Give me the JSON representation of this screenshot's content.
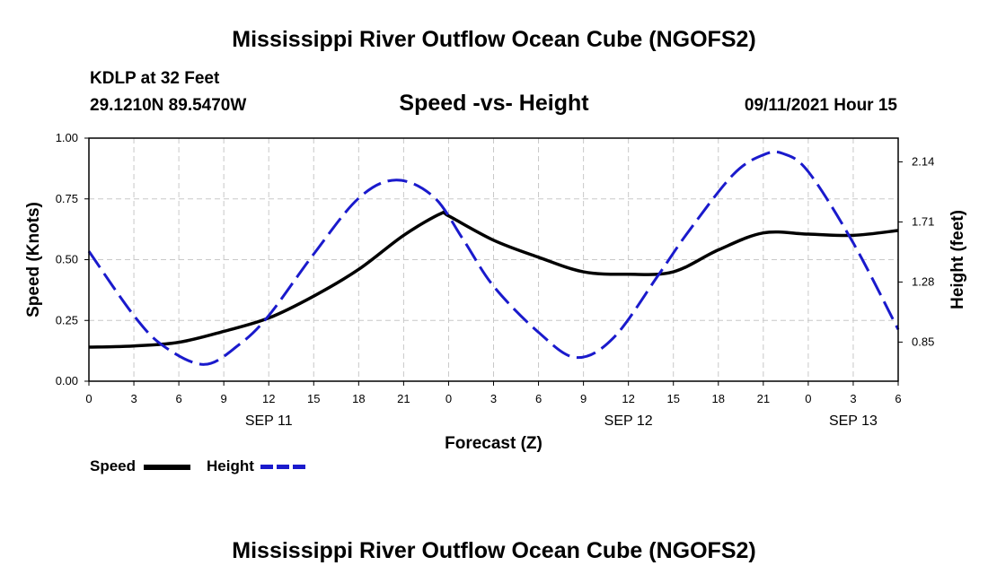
{
  "page": {
    "title_top": "Mississippi River Outflow Ocean Cube (NGOFS2)",
    "title_bottom": "Mississippi River Outflow Ocean Cube (NGOFS2)",
    "station": "KDLP at 32 Feet",
    "coords": "29.1210N  89.5470W",
    "subtitle": "Speed -vs- Height",
    "datetime": "09/11/2021 Hour 15"
  },
  "legend": {
    "speed_label": "Speed",
    "height_label": "Height"
  },
  "colors": {
    "speed": "#000000",
    "height": "#1a1acc",
    "grid": "#c8c8c8"
  },
  "chart_data": {
    "type": "line",
    "title": "Speed -vs- Height",
    "xlabel": "Forecast (Z)",
    "ylabel": "Speed (Knots)",
    "y2label": "Height (feet)",
    "xlim": [
      0,
      54
    ],
    "ylim": [
      0,
      1
    ],
    "y2lim": [
      0.57,
      2.31
    ],
    "grid": true,
    "legend_position": "bottom-left",
    "x_ticks": [
      {
        "hour": 0,
        "label": "0"
      },
      {
        "hour": 3,
        "label": "3"
      },
      {
        "hour": 6,
        "label": "6"
      },
      {
        "hour": 9,
        "label": "9"
      },
      {
        "hour": 12,
        "label": "12"
      },
      {
        "hour": 15,
        "label": "15"
      },
      {
        "hour": 18,
        "label": "18"
      },
      {
        "hour": 21,
        "label": "21"
      },
      {
        "hour": 24,
        "label": "0"
      },
      {
        "hour": 27,
        "label": "3"
      },
      {
        "hour": 30,
        "label": "6"
      },
      {
        "hour": 33,
        "label": "9"
      },
      {
        "hour": 36,
        "label": "12"
      },
      {
        "hour": 39,
        "label": "15"
      },
      {
        "hour": 42,
        "label": "18"
      },
      {
        "hour": 45,
        "label": "21"
      },
      {
        "hour": 48,
        "label": "0"
      },
      {
        "hour": 51,
        "label": "3"
      },
      {
        "hour": 54,
        "label": "6"
      }
    ],
    "date_labels": [
      {
        "hour": 12,
        "label": "SEP 11"
      },
      {
        "hour": 36,
        "label": "SEP 12"
      },
      {
        "hour": 51,
        "label": "SEP 13"
      }
    ],
    "y_ticks": [
      {
        "value": 0,
        "label": "0.00"
      },
      {
        "value": 0.25,
        "label": "0.25"
      },
      {
        "value": 0.5,
        "label": "0.50"
      },
      {
        "value": 0.75,
        "label": "0.75"
      },
      {
        "value": 1,
        "label": "1.00"
      }
    ],
    "y2_ticks": [
      {
        "value": 0.85,
        "label": "0.85"
      },
      {
        "value": 1.28,
        "label": "1.28"
      },
      {
        "value": 1.71,
        "label": "1.71"
      },
      {
        "value": 2.14,
        "label": "2.14"
      }
    ],
    "series": [
      {
        "name": "Speed",
        "axis": "left",
        "style": "solid",
        "x": [
          0,
          3,
          6,
          9,
          12,
          15,
          18,
          21,
          23.5,
          24,
          27,
          30,
          33,
          36,
          39,
          42,
          45,
          48,
          51,
          54
        ],
        "y": [
          0.14,
          0.145,
          0.16,
          0.205,
          0.26,
          0.35,
          0.46,
          0.6,
          0.69,
          0.68,
          0.58,
          0.51,
          0.45,
          0.44,
          0.45,
          0.54,
          0.61,
          0.605,
          0.6,
          0.62
        ]
      },
      {
        "name": "Height",
        "axis": "right",
        "style": "dashed",
        "x": [
          0,
          3,
          5,
          7.7,
          10,
          12,
          15,
          18,
          20.5,
          23,
          25,
          27,
          30,
          32.5,
          35,
          38,
          40,
          43,
          45,
          46.3,
          48,
          51,
          54
        ],
        "y": [
          1.5,
          1.04,
          0.82,
          0.69,
          0.83,
          1.04,
          1.48,
          1.88,
          2.01,
          1.89,
          1.58,
          1.25,
          0.92,
          0.74,
          0.88,
          1.33,
          1.64,
          2.05,
          2.19,
          2.2,
          2.07,
          1.56,
          0.94
        ]
      }
    ]
  }
}
